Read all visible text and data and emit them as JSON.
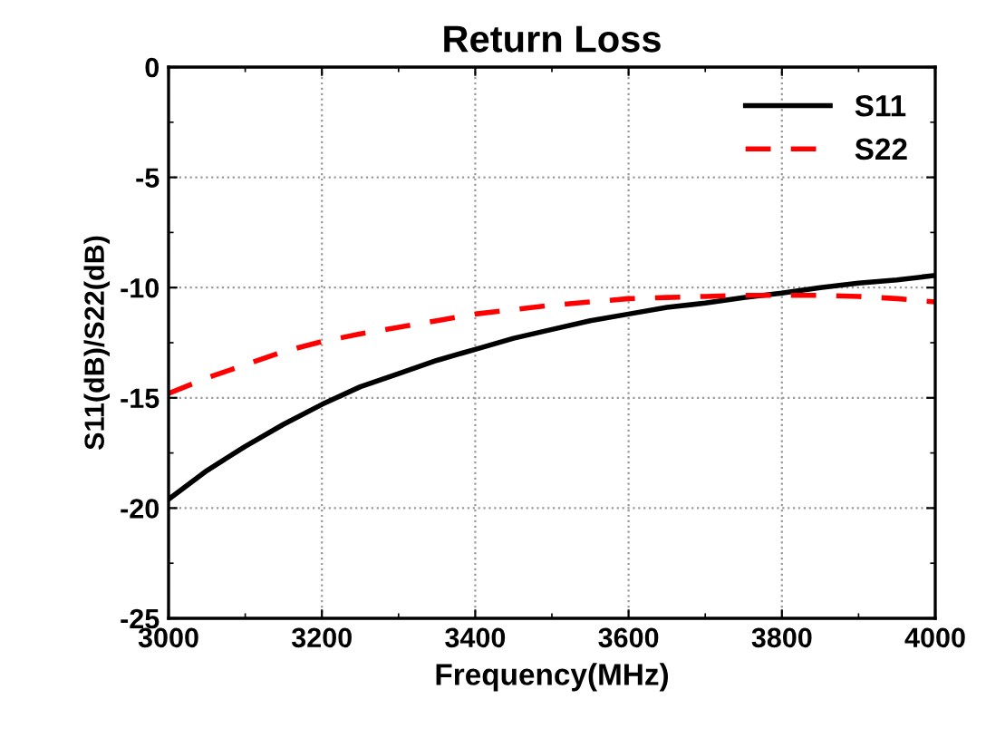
{
  "chart_data": {
    "type": "line",
    "title": "Return Loss",
    "xlabel": "Frequency(MHz)",
    "ylabel": "S11(dB)/S22(dB)",
    "x": [
      3000,
      3050,
      3100,
      3150,
      3200,
      3250,
      3300,
      3350,
      3400,
      3450,
      3500,
      3550,
      3600,
      3650,
      3700,
      3750,
      3800,
      3850,
      3900,
      3950,
      4000
    ],
    "series": [
      {
        "name": "S11",
        "color": "#000000",
        "line_style": "solid",
        "values": [
          -19.6,
          -18.3,
          -17.2,
          -16.2,
          -15.3,
          -14.5,
          -13.9,
          -13.3,
          -12.8,
          -12.3,
          -11.9,
          -11.5,
          -11.2,
          -10.9,
          -10.7,
          -10.45,
          -10.25,
          -10.0,
          -9.8,
          -9.65,
          -9.45
        ]
      },
      {
        "name": "S22",
        "color": "#ff0000",
        "line_style": "dashed",
        "values": [
          -14.8,
          -14.1,
          -13.5,
          -12.9,
          -12.45,
          -12.1,
          -11.8,
          -11.5,
          -11.2,
          -11.0,
          -10.8,
          -10.65,
          -10.5,
          -10.45,
          -10.4,
          -10.35,
          -10.35,
          -10.35,
          -10.4,
          -10.5,
          -10.65
        ]
      }
    ],
    "xlim": [
      3000,
      4000
    ],
    "xticks": [
      3000,
      3200,
      3400,
      3600,
      3800,
      4000
    ],
    "ylim": [
      -25,
      0
    ],
    "yticks": [
      -25,
      -20,
      -15,
      -10,
      -5,
      0
    ],
    "grid": true,
    "legend": "top right"
  }
}
